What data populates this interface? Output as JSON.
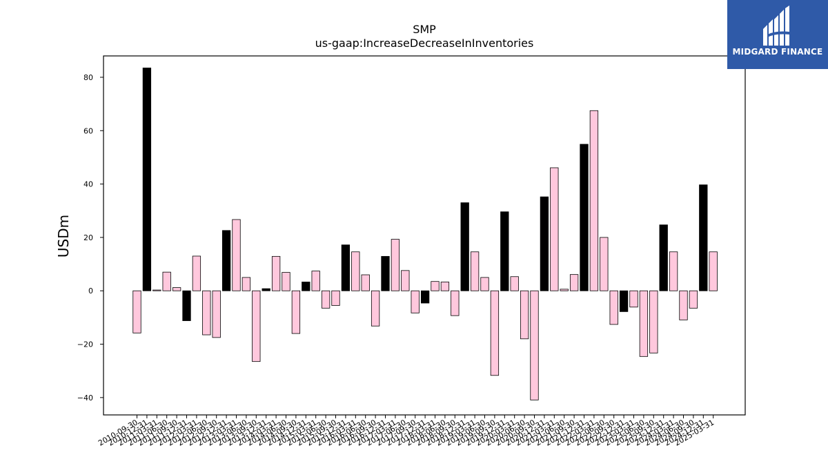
{
  "chart_data": {
    "type": "bar",
    "title": "SMP",
    "subtitle": "us-gaap:IncreaseDecreaseInInventories",
    "ylabel": "USDm",
    "xlabel": "",
    "ylim": [
      -46.5,
      88
    ],
    "yticks": [
      -40,
      -20,
      0,
      20,
      40,
      60,
      80
    ],
    "ytick_labels": [
      "−40",
      "−20",
      "0",
      "20",
      "40",
      "60",
      "80"
    ],
    "grid": false,
    "colors": {
      "q4_bar": "#000000",
      "other_bar": "#ffc8dd",
      "edge": "#000000"
    },
    "categories": [
      "2010-09-30",
      "2010-12-31",
      "2011-03-31",
      "2011-06-30",
      "2011-09-30",
      "2011-12-31",
      "2012-03-31",
      "2012-06-30",
      "2012-09-30",
      "2012-12-31",
      "2013-03-31",
      "2013-06-30",
      "2013-09-30",
      "2013-12-31",
      "2014-03-31",
      "2014-06-30",
      "2014-09-30",
      "2014-12-31",
      "2015-03-31",
      "2015-06-30",
      "2015-09-30",
      "2015-12-31",
      "2016-03-31",
      "2016-06-30",
      "2016-09-30",
      "2016-12-31",
      "2017-03-31",
      "2017-06-30",
      "2017-09-30",
      "2017-12-31",
      "2018-03-31",
      "2018-06-30",
      "2018-09-30",
      "2018-12-31",
      "2019-03-31",
      "2019-06-30",
      "2019-09-30",
      "2019-12-31",
      "2020-03-31",
      "2020-06-30",
      "2020-09-30",
      "2020-12-31",
      "2021-03-31",
      "2021-06-30",
      "2021-09-30",
      "2021-12-31",
      "2022-03-31",
      "2022-06-30",
      "2022-09-30",
      "2022-12-31",
      "2023-03-31",
      "2023-06-30",
      "2023-09-30",
      "2023-12-31",
      "2024-03-31",
      "2024-06-30",
      "2024-09-30",
      "2024-12-31",
      "2025-03-31"
    ],
    "values": [
      -15.8,
      83.5,
      0.3,
      7.0,
      1.2,
      -11.2,
      13.0,
      -16.5,
      -17.5,
      22.6,
      26.7,
      5.0,
      -26.5,
      0.8,
      12.9,
      6.9,
      -16.0,
      3.3,
      7.4,
      -6.5,
      -5.5,
      17.2,
      14.6,
      6.0,
      -13.2,
      12.9,
      19.3,
      7.6,
      -8.3,
      -4.6,
      3.5,
      3.3,
      -9.3,
      33.0,
      14.6,
      5.0,
      -31.7,
      29.6,
      5.3,
      -18.0,
      -40.9,
      35.2,
      46.1,
      0.6,
      6.1,
      54.9,
      67.5,
      20.0,
      -12.6,
      -7.8,
      -6.1,
      -24.6,
      -23.3,
      24.7,
      14.6,
      -10.9,
      -6.5,
      39.7,
      14.6
    ]
  },
  "logo": {
    "name": "MIDGARD FINANCE",
    "icon": "midgard-logo-icon",
    "background": "#2f5aa8"
  }
}
